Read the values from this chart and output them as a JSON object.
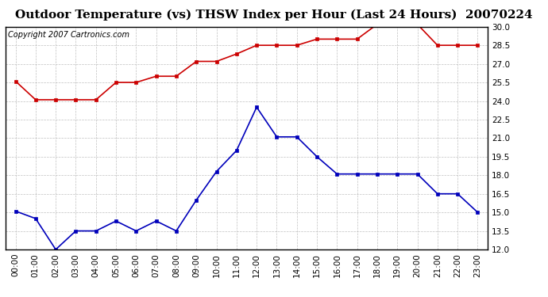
{
  "title": "Outdoor Temperature (vs) THSW Index per Hour (Last 24 Hours)  20070224",
  "copyright": "Copyright 2007 Cartronics.com",
  "hours": [
    "00:00",
    "01:00",
    "02:00",
    "03:00",
    "04:00",
    "05:00",
    "06:00",
    "07:00",
    "08:00",
    "09:00",
    "10:00",
    "11:00",
    "12:00",
    "13:00",
    "14:00",
    "15:00",
    "16:00",
    "17:00",
    "18:00",
    "19:00",
    "20:00",
    "21:00",
    "22:00",
    "23:00"
  ],
  "temp_blue": [
    15.1,
    14.5,
    12.0,
    13.5,
    13.5,
    14.3,
    13.5,
    14.3,
    13.5,
    16.0,
    18.3,
    20.0,
    23.5,
    21.1,
    21.1,
    19.5,
    18.1,
    18.1,
    18.1,
    18.1,
    18.1,
    16.5,
    16.5,
    15.0
  ],
  "thsw_red": [
    25.6,
    24.1,
    24.1,
    24.1,
    24.1,
    25.5,
    25.5,
    26.0,
    26.0,
    27.2,
    27.2,
    27.8,
    28.5,
    28.5,
    28.5,
    29.0,
    29.0,
    29.0,
    30.2,
    30.2,
    30.2,
    28.5,
    28.5,
    28.5
  ],
  "ylim_min": 12.0,
  "ylim_max": 30.0,
  "yticks": [
    12.0,
    13.5,
    15.0,
    16.5,
    18.0,
    19.5,
    21.0,
    22.5,
    24.0,
    25.5,
    27.0,
    28.5,
    30.0
  ],
  "blue_color": "#0000bb",
  "red_color": "#cc0000",
  "bg_color": "#ffffff",
  "grid_color": "#b0b0b0",
  "title_fontsize": 11,
  "copyright_fontsize": 7,
  "tick_fontsize": 7.5,
  "marker_size": 3.5,
  "line_width": 1.2
}
